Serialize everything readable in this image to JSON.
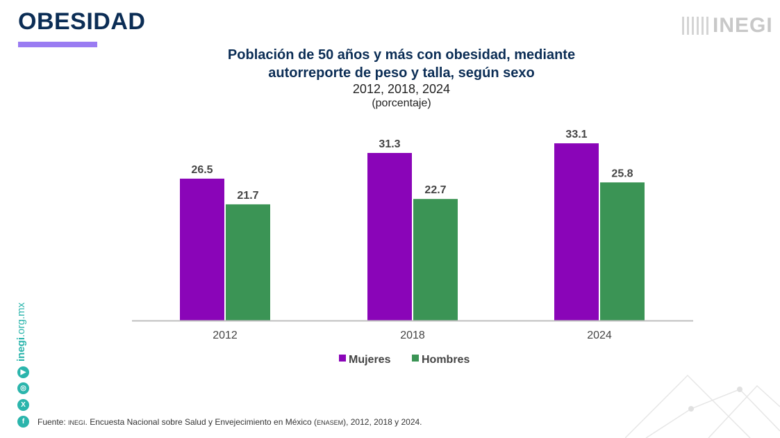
{
  "header": {
    "title": "OBESIDAD",
    "logo": "INEGI",
    "accent": "#9a7cf2"
  },
  "sidebar": {
    "url_bold": "inegi",
    "url_rest": ".org.mx",
    "icons": [
      "youtube-icon",
      "instagram-icon",
      "x-icon",
      "facebook-icon"
    ]
  },
  "source": {
    "prefix": "Fuente: ",
    "org": "INEGI",
    "text1": ". Encuesta Nacional sobre Salud y Envejecimiento en México (",
    "abbr": "ENASEM",
    "text2": "), 2012, 2018 y 2024."
  },
  "chart_data": {
    "type": "bar",
    "title_line1": "Población de 50 años y más con obesidad, mediante",
    "title_line2": "autorreporte de peso y talla, según sexo",
    "subtitle": "2012, 2018, 2024",
    "unit": "(porcentaje)",
    "categories": [
      "2012",
      "2018",
      "2024"
    ],
    "series": [
      {
        "name": "Mujeres",
        "values": [
          26.5,
          31.3,
          33.1
        ],
        "color": "#8a05b8"
      },
      {
        "name": "Hombres",
        "values": [
          21.7,
          22.7,
          25.8
        ],
        "color": "#3b9455"
      }
    ],
    "ylim": [
      0,
      36
    ],
    "grid": false,
    "legend": "bottom-center"
  }
}
